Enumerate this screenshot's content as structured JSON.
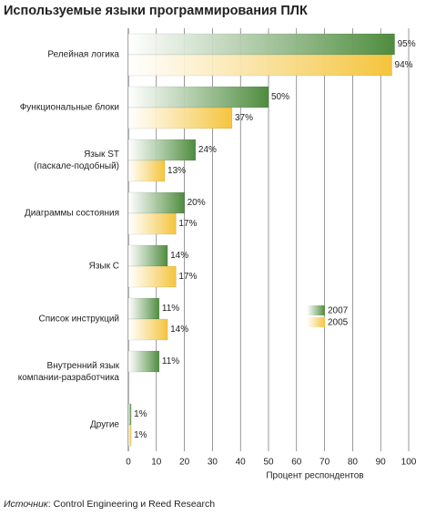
{
  "chart_data": {
    "type": "bar",
    "orientation": "horizontal",
    "title": "Используемые языки программирования ПЛК",
    "categories": [
      "Релейная логика",
      "Функциональные блоки",
      "Язык ST\n(паскале-подобный)",
      "Диаграммы состояния",
      "Язык С",
      "Список инструкций",
      "Внутренний язык\nкомпании-разработчика",
      "Другие"
    ],
    "series": [
      {
        "name": "2007",
        "color": "#4e8c3e",
        "values": [
          95,
          50,
          24,
          20,
          14,
          11,
          11,
          1
        ],
        "value_labels": [
          "95%",
          "50%",
          "24%",
          "20%",
          "14%",
          "11%",
          "11%",
          "1%"
        ]
      },
      {
        "name": "2005",
        "color": "#f4c43c",
        "values": [
          94,
          37,
          13,
          17,
          17,
          14,
          null,
          1
        ],
        "value_labels": [
          "94%",
          "37%",
          "13%",
          "17%",
          "17%",
          "14%",
          null,
          "1%"
        ]
      }
    ],
    "xlim": [
      0,
      100
    ],
    "xticks": [
      0,
      10,
      20,
      30,
      40,
      50,
      60,
      70,
      80,
      90,
      100
    ],
    "xlabel": "Процент респондентов",
    "grid": true,
    "legend": "right",
    "source_label": "Источник",
    "source_text": ": Control Engineering и Reed Research"
  }
}
